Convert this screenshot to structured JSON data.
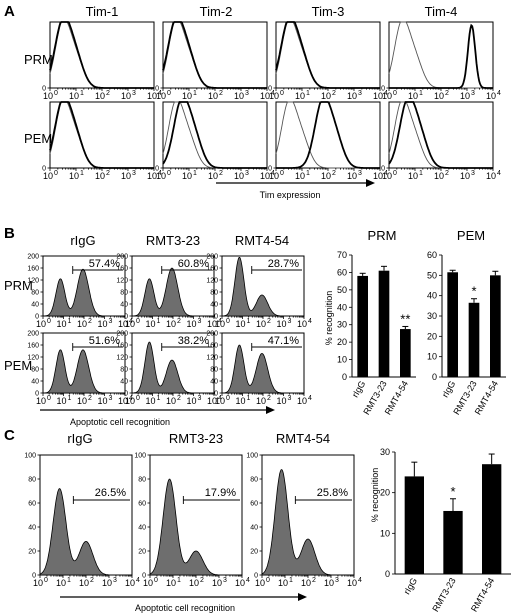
{
  "chart_data": [
    {
      "panel": "A",
      "type": "histogram",
      "column_titles": [
        "Tim-1",
        "Tim-2",
        "Tim-3",
        "Tim-4"
      ],
      "row_labels": [
        "PRM",
        "PEM"
      ],
      "xaxis_label": "Tim expression",
      "x_scale": "log",
      "xlim": [
        1,
        10000
      ],
      "x_ticks": [
        "10",
        "10",
        "10",
        "10",
        "10"
      ],
      "x_tick_exponents": [
        "0",
        "1",
        "2",
        "3",
        "4"
      ],
      "y_ticks": [
        "0"
      ],
      "curves": {
        "PRM": [
          {
            "control_peak": 3.0,
            "stain_peak": 3.0
          },
          {
            "control_peak": 3.0,
            "stain_peak": 3.0
          },
          {
            "control_peak": 3.0,
            "stain_peak": 3.0
          },
          {
            "control_peak": 3.0,
            "stain_peak": 1500
          }
        ],
        "PEM": [
          {
            "control_peak": 3.0,
            "stain_peak": 3.0
          },
          {
            "control_peak": 3.0,
            "stain_peak": 5.0
          },
          {
            "control_peak": 3.0,
            "stain_peak": 60
          },
          {
            "control_peak": 3.0,
            "stain_peak": 5.0
          }
        ]
      }
    },
    {
      "panel": "B",
      "type": "histogram",
      "column_titles": [
        "rIgG",
        "RMT3-23",
        "RMT4-54"
      ],
      "row_labels": [
        "PRM",
        "PEM"
      ],
      "xaxis_label": "Apoptotic cell recognition",
      "x_scale": "log",
      "xlim": [
        1,
        10000
      ],
      "ylim": [
        0,
        200
      ],
      "y_ticks": [
        "0",
        "40",
        "80",
        "120",
        "160",
        "200"
      ],
      "gate_percent": {
        "PRM": [
          "57.4%",
          "60.8%",
          "28.7%"
        ],
        "PEM": [
          "51.6%",
          "38.2%",
          "47.1%"
        ]
      }
    },
    {
      "panel": "B",
      "type": "bar",
      "title": "PRM",
      "ylabel": "% recognition",
      "categories": [
        "rIgG",
        "RMT3-23",
        "RMT4-54"
      ],
      "values": [
        58,
        61,
        27.5
      ],
      "errors": [
        1.5,
        2.5,
        1.5
      ],
      "significance": [
        "",
        "",
        "**"
      ],
      "ylim": [
        0,
        70
      ],
      "y_ticks": [
        "0",
        "10",
        "20",
        "30",
        "40",
        "50",
        "60",
        "70"
      ]
    },
    {
      "panel": "B",
      "type": "bar",
      "title": "PEM",
      "ylabel": "",
      "categories": [
        "rIgG",
        "RMT3-23",
        "RMT4-54"
      ],
      "values": [
        51.5,
        36.5,
        50
      ],
      "errors": [
        1.0,
        2.0,
        2.0
      ],
      "significance": [
        "",
        "*",
        ""
      ],
      "ylim": [
        0,
        60
      ],
      "y_ticks": [
        "0",
        "10",
        "20",
        "30",
        "40",
        "50",
        "60"
      ]
    },
    {
      "panel": "C",
      "type": "histogram",
      "column_titles": [
        "rIgG",
        "RMT3-23",
        "RMT4-54"
      ],
      "xaxis_label": "Apoptotic cell recognition",
      "x_scale": "log",
      "xlim": [
        1,
        10000
      ],
      "ylim": [
        0,
        100
      ],
      "y_ticks": [
        "0",
        "20",
        "40",
        "60",
        "80",
        "100"
      ],
      "gate_percent": [
        "26.5%",
        "17.9%",
        "25.8%"
      ]
    },
    {
      "panel": "C",
      "type": "bar",
      "ylabel": "% recognition",
      "categories": [
        "rIgG",
        "RMT3-23",
        "RMT4-54"
      ],
      "values": [
        24,
        15.5,
        27
      ],
      "errors": [
        3.5,
        3.0,
        2.5
      ],
      "significance": [
        "",
        "*",
        ""
      ],
      "ylim": [
        0,
        30
      ],
      "y_ticks": [
        "0",
        "10",
        "20",
        "30"
      ]
    }
  ],
  "panel_letters": [
    "A",
    "B",
    "C"
  ],
  "colors": {
    "fill": "#6e6e6e",
    "line": "#000000",
    "control_line": "#555555"
  }
}
